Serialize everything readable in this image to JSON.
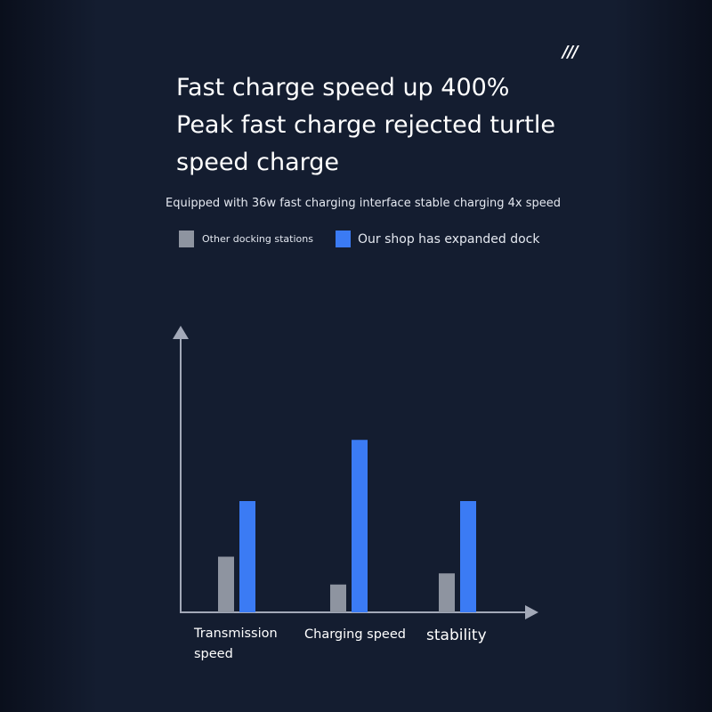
{
  "header": {
    "mark": "///",
    "headline": "Fast charge speed up 400% Peak fast charge rejected turtle speed charge",
    "subtitle": "Equipped with 36w fast charging interface stable charging 4x speed"
  },
  "colors": {
    "background": "#141d30",
    "axis": "#a3a9b8",
    "other": "#8e94a0",
    "ours": "#3b7bf4"
  },
  "chart_data": {
    "type": "bar",
    "title": "",
    "xlabel": "",
    "ylabel": "",
    "categories": [
      "Transmission speed",
      "Charging speed",
      "stability"
    ],
    "series": [
      {
        "name": "Other docking stations",
        "color": "#8e94a0",
        "values": [
          1,
          0.5,
          0.7
        ]
      },
      {
        "name": "Our shop has expanded dock",
        "color": "#3b7bf4",
        "values": [
          2,
          3.1,
          2
        ]
      }
    ],
    "ylim": [
      0,
      5
    ],
    "grid": false,
    "legend_position": "top"
  }
}
